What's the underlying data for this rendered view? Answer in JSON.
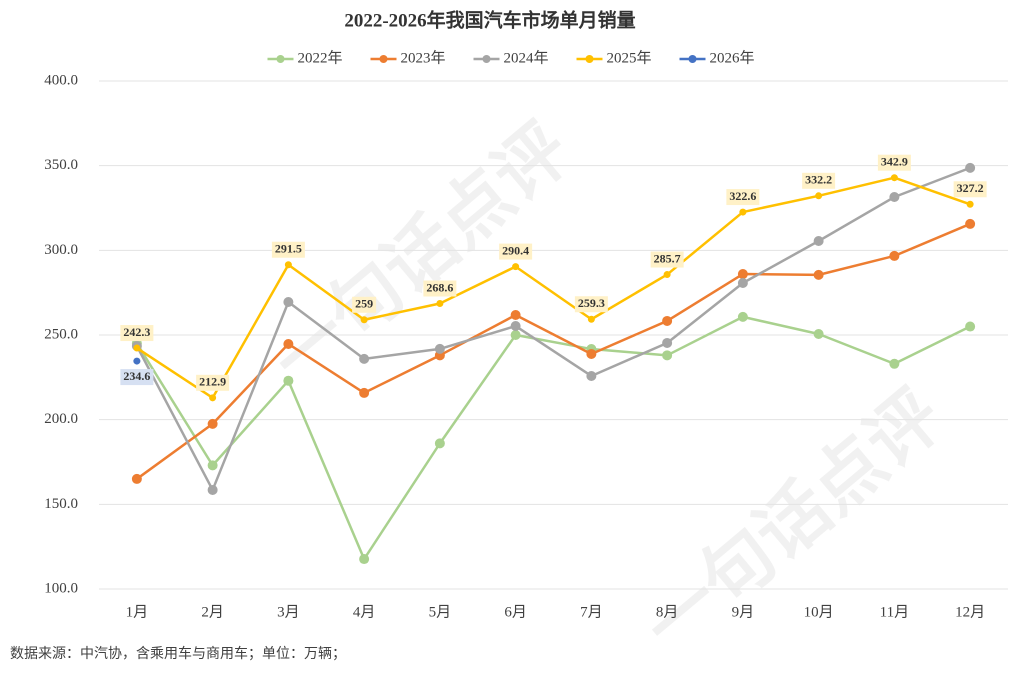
{
  "chart_data": {
    "type": "line",
    "title": "2022-2026年我国汽车市场单月销量",
    "watermark": "一句话点评",
    "source_note": "数据来源：中汽协，含乘用车与商用车；单位：万辆；",
    "categories": [
      "1月",
      "2月",
      "3月",
      "4月",
      "5月",
      "6月",
      "7月",
      "8月",
      "9月",
      "10月",
      "11月",
      "12月"
    ],
    "ylim": [
      100,
      400
    ],
    "yticks": [
      {
        "value": 100,
        "label": "100.0"
      },
      {
        "value": 150,
        "label": "150.0"
      },
      {
        "value": 200,
        "label": "200.0"
      },
      {
        "value": 250,
        "label": "250.0"
      },
      {
        "value": 300,
        "label": "300.0"
      },
      {
        "value": 350,
        "label": "350.0"
      },
      {
        "value": 400,
        "label": "400.0"
      }
    ],
    "grid": true,
    "legend": "top",
    "series": [
      {
        "name": "2022年",
        "color": "#a9d18e",
        "values": [
          245,
          173,
          223,
          117.7,
          186,
          250,
          241.7,
          238,
          260.7,
          250.6,
          233,
          255
        ]
      },
      {
        "name": "2023年",
        "color": "#ed7d31",
        "values": [
          165,
          197.5,
          244.7,
          215.8,
          238,
          261.8,
          238.8,
          258.3,
          286,
          285.5,
          296.7,
          315.6
        ]
      },
      {
        "name": "2024年",
        "color": "#a5a5a5",
        "values": [
          243.5,
          158.5,
          269.5,
          235.9,
          241.8,
          255.3,
          225.8,
          245.3,
          280.7,
          305.5,
          331.5,
          348.7
        ]
      },
      {
        "name": "2025年",
        "color": "#ffc000",
        "show_labels": true,
        "values": [
          242.3,
          212.9,
          291.5,
          259,
          268.6,
          290.4,
          259.3,
          285.7,
          322.6,
          332.2,
          342.9,
          327.2
        ]
      },
      {
        "name": "2026年",
        "color": "#4472c4",
        "show_labels": true,
        "values": [
          234.6,
          null,
          null,
          null,
          null,
          null,
          null,
          null,
          null,
          null,
          null,
          null
        ]
      }
    ]
  }
}
